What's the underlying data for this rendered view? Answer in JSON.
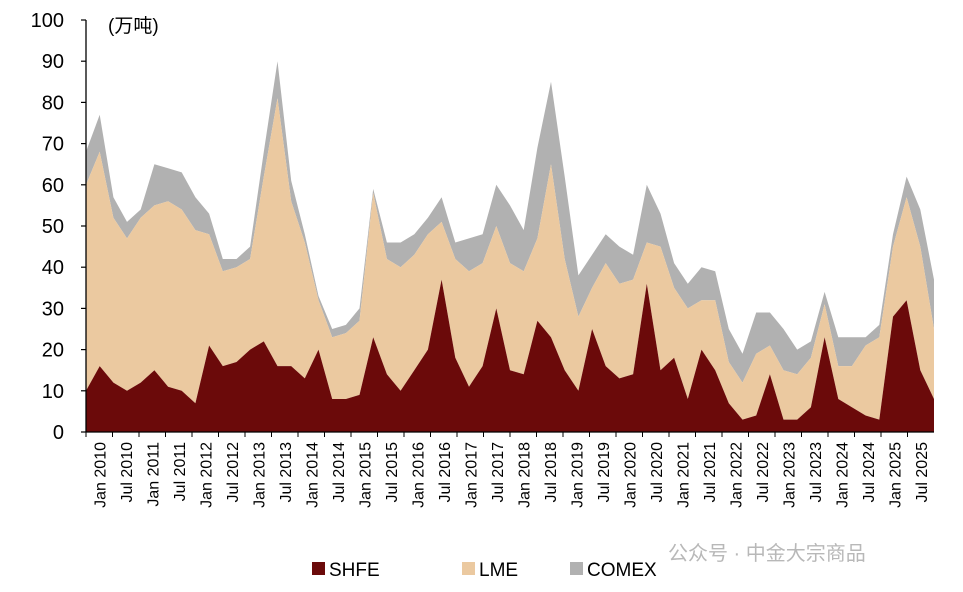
{
  "chart_data": {
    "type": "area",
    "stacked": true,
    "unit_label": "(万吨)",
    "ylim": [
      0,
      100
    ],
    "yticks": [
      0,
      10,
      20,
      30,
      40,
      50,
      60,
      70,
      80,
      90,
      100
    ],
    "xticks": [
      "Jan 2010",
      "Jul 2010",
      "Jan 2011",
      "Jul 2011",
      "Jan 2012",
      "Jul 2012",
      "Jan 2013",
      "Jul 2013",
      "Jan 2014",
      "Jul 2014",
      "Jan 2015",
      "Jul 2015",
      "Jan 2016",
      "Jul 2016",
      "Jan 2017",
      "Jul 2017",
      "Jan 2018",
      "Jul 2018",
      "Jan 2019",
      "Jul 2019",
      "Jan 2020",
      "Jul 2020",
      "Jan 2021",
      "Jul 2021",
      "Jan 2022",
      "Jul 2022",
      "Jan 2023",
      "Jul 2023",
      "Jan 2024",
      "Jul 2024",
      "Jan 2025",
      "Jul 2025"
    ],
    "x": [
      "2010-01",
      "2010-04",
      "2010-07",
      "2010-10",
      "2011-01",
      "2011-04",
      "2011-07",
      "2011-10",
      "2012-01",
      "2012-04",
      "2012-07",
      "2012-10",
      "2013-01",
      "2013-04",
      "2013-07",
      "2013-10",
      "2014-01",
      "2014-04",
      "2014-07",
      "2014-10",
      "2015-01",
      "2015-04",
      "2015-07",
      "2015-10",
      "2016-01",
      "2016-04",
      "2016-07",
      "2016-10",
      "2017-01",
      "2017-04",
      "2017-07",
      "2017-10",
      "2018-01",
      "2018-04",
      "2018-07",
      "2018-10",
      "2019-01",
      "2019-04",
      "2019-07",
      "2019-10",
      "2020-01",
      "2020-04",
      "2020-07",
      "2020-10",
      "2021-01",
      "2021-04",
      "2021-07",
      "2021-10",
      "2022-01",
      "2022-04",
      "2022-07",
      "2022-10",
      "2023-01",
      "2023-04",
      "2023-07",
      "2023-10",
      "2024-01",
      "2024-04",
      "2024-07",
      "2024-10",
      "2025-01",
      "2025-04",
      "2025-07"
    ],
    "series": [
      {
        "name": "SHFE",
        "color": "#6b0a0a",
        "values": [
          10,
          16,
          12,
          10,
          12,
          15,
          11,
          10,
          7,
          21,
          16,
          17,
          20,
          22,
          16,
          16,
          13,
          20,
          8,
          8,
          9,
          23,
          14,
          10,
          15,
          20,
          37,
          18,
          11,
          16,
          30,
          15,
          14,
          27,
          23,
          15,
          10,
          25,
          16,
          13,
          14,
          36,
          15,
          18,
          8,
          20,
          15,
          7,
          3,
          4,
          14,
          3,
          3,
          6,
          23,
          8,
          6,
          4,
          3,
          28,
          32,
          15,
          8
        ]
      },
      {
        "name": "LME",
        "color": "#ebc9a0",
        "values": [
          50,
          52,
          40,
          37,
          40,
          40,
          45,
          44,
          42,
          27,
          23,
          23,
          22,
          40,
          65,
          40,
          33,
          12,
          15,
          16,
          18,
          35,
          28,
          30,
          28,
          28,
          14,
          24,
          28,
          25,
          20,
          26,
          25,
          20,
          42,
          27,
          18,
          10,
          25,
          23,
          23,
          10,
          30,
          17,
          22,
          12,
          17,
          10,
          9,
          15,
          7,
          12,
          11,
          12,
          8,
          8,
          10,
          17,
          20,
          17,
          25,
          30,
          17
        ]
      },
      {
        "name": "COMEX",
        "color": "#b1b1b1",
        "values": [
          8,
          9,
          5,
          4,
          2,
          10,
          8,
          9,
          8,
          5,
          3,
          2,
          3,
          6,
          9,
          5,
          2,
          1,
          2,
          2,
          3,
          1,
          4,
          6,
          5,
          4,
          6,
          4,
          8,
          7,
          10,
          14,
          10,
          22,
          20,
          20,
          10,
          8,
          7,
          9,
          6,
          14,
          8,
          6,
          6,
          8,
          7,
          8,
          7,
          10,
          8,
          10,
          6,
          4,
          3,
          7,
          7,
          2,
          3,
          3,
          5,
          9,
          12
        ]
      }
    ],
    "legend_position": "bottom",
    "grid": false
  },
  "watermark": "公众号 · 中金大宗商品"
}
